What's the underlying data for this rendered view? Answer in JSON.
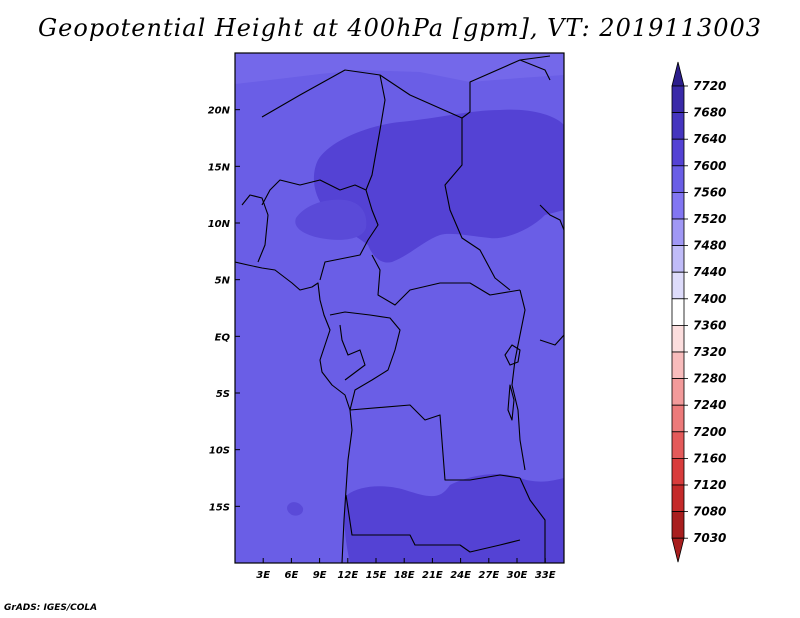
{
  "title": "Geopotential Height at 400hPa [gpm], VT: 2019113003",
  "footer": "GrADS: IGES/COLA",
  "colors": {
    "field_base": "#6a5ee6",
    "field_high": "#5442d4",
    "border": "#000000"
  },
  "chart_data": {
    "type": "heatmap",
    "title": "Geopotential Height at 400hPa [gpm], VT: 2019113003",
    "variable": "Geopotential Height",
    "level": "400hPa",
    "units": "gpm",
    "valid_time": "2019113003",
    "lon_range_deg": [
      0,
      35
    ],
    "lat_range_deg": [
      -20,
      25
    ],
    "x_ticks": [
      "3E",
      "6E",
      "9E",
      "12E",
      "15E",
      "18E",
      "21E",
      "24E",
      "27E",
      "30E",
      "33E"
    ],
    "x_tick_values": [
      3,
      6,
      9,
      12,
      15,
      18,
      21,
      24,
      27,
      30,
      33
    ],
    "y_ticks": [
      "20N",
      "15N",
      "10N",
      "5N",
      "EQ",
      "5S",
      "10S",
      "15S"
    ],
    "y_tick_values": [
      20,
      15,
      10,
      5,
      0,
      -5,
      -10,
      -15
    ],
    "colorbar": {
      "levels": [
        7720,
        7680,
        7640,
        7600,
        7560,
        7520,
        7480,
        7440,
        7400,
        7360,
        7320,
        7280,
        7240,
        7200,
        7160,
        7120,
        7080,
        7030
      ],
      "colors": [
        "#2c1e8c",
        "#3a2aa8",
        "#4535bf",
        "#5442d4",
        "#6a5ee6",
        "#8276f2",
        "#a098f5",
        "#c0bcf8",
        "#dedcfb",
        "#ffffff",
        "#fcdede",
        "#f8bcbc",
        "#f29a9a",
        "#ec7a7a",
        "#e45a5a",
        "#d83c3c",
        "#c42a2a",
        "#a81e1e"
      ]
    }
  }
}
